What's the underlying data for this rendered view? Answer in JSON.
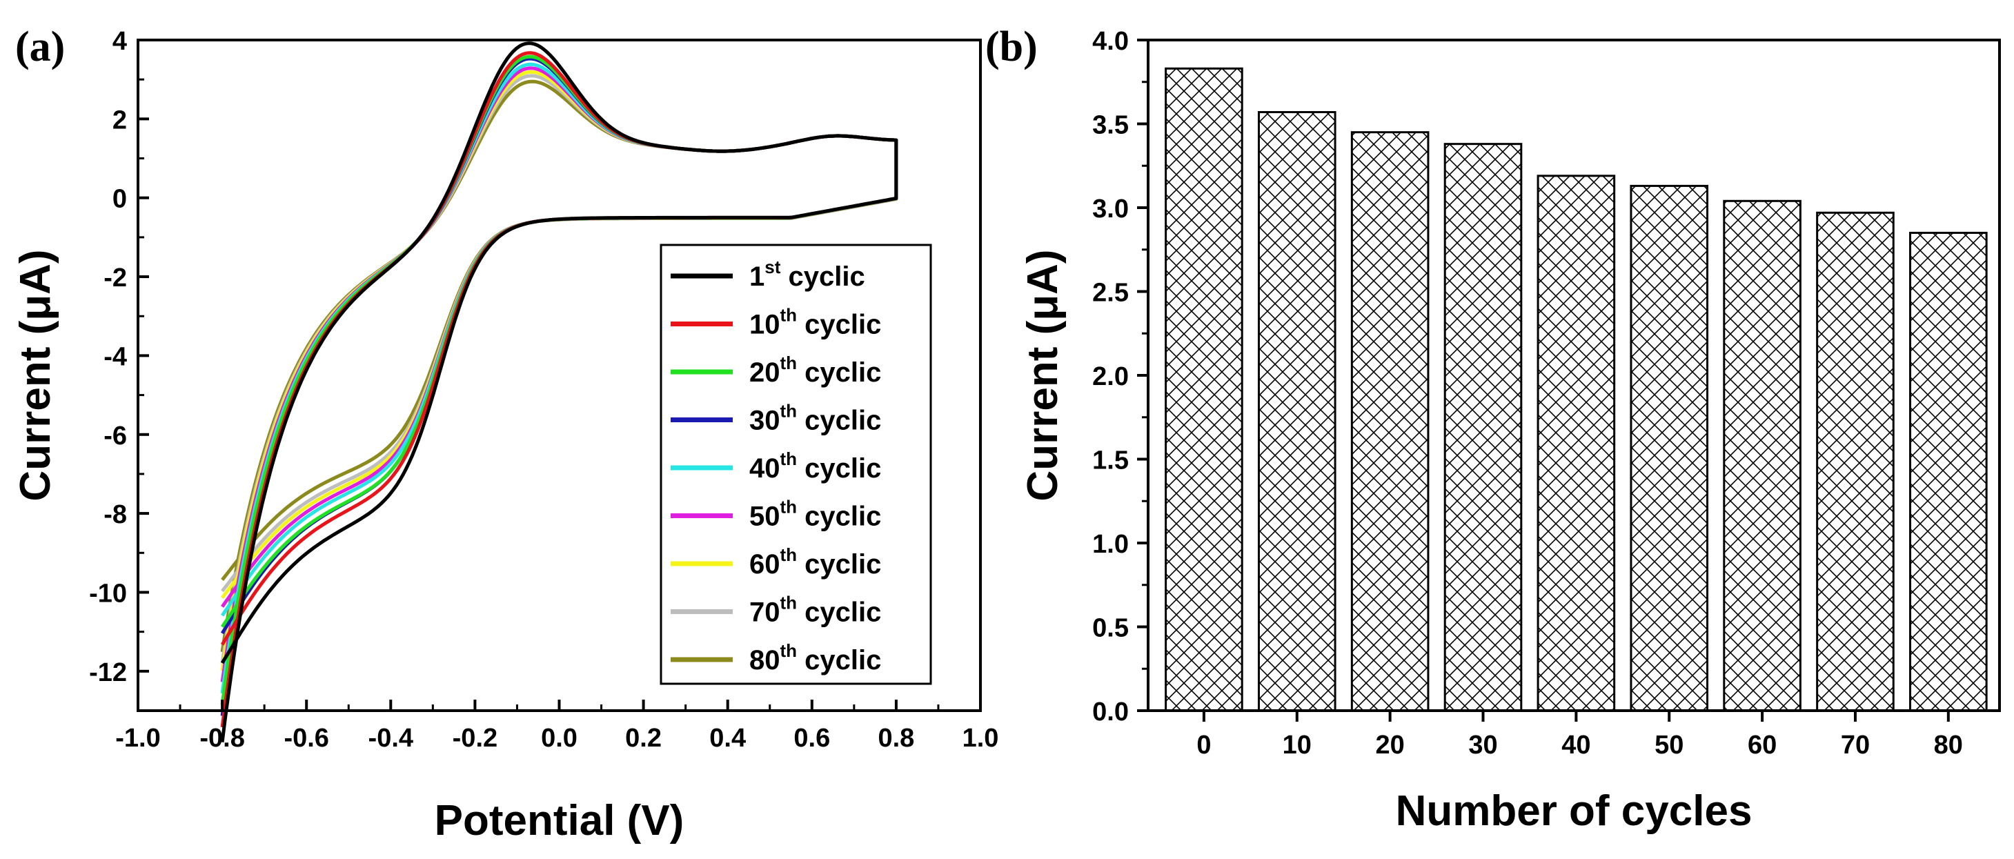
{
  "chart_data": [
    {
      "type": "line",
      "panel_label": "(a)",
      "xlabel": "Potential (V)",
      "ylabel": "Current (μA)",
      "xlim": [
        -1.0,
        1.0
      ],
      "ylim": [
        -13,
        4
      ],
      "x_ticks": [
        -1.0,
        -0.8,
        -0.6,
        -0.4,
        -0.2,
        0.0,
        0.2,
        0.4,
        0.6,
        0.8,
        1.0
      ],
      "x_tick_labels": [
        "-1.0",
        "-0.8",
        "-0.6",
        "-0.4",
        "-0.2",
        "0.0",
        "0.2",
        "0.4",
        "0.6",
        "0.8",
        "1.0"
      ],
      "y_ticks": [
        -12,
        -10,
        -8,
        -6,
        -4,
        -2,
        0,
        2,
        4
      ],
      "y_tick_labels": [
        "-12",
        "-10",
        "-8",
        "-6",
        "-4",
        "-2",
        "0",
        "2",
        "4"
      ],
      "grid": false,
      "legend_position": "lower-right",
      "series": [
        {
          "name_main": "1",
          "name_sup": "st",
          "name_tail": " cyclic",
          "color": "#000000",
          "peak_ox": 3.85,
          "peak_red": -7.8,
          "min_current": -12.9
        },
        {
          "name_main": "10",
          "name_sup": "th",
          "name_tail": " cyclic",
          "color": "#e8141a",
          "peak_ox": 3.6,
          "peak_red": -7.4,
          "min_current": -12.5
        },
        {
          "name_main": "20",
          "name_sup": "th",
          "name_tail": " cyclic",
          "color": "#22e022",
          "peak_ox": 3.5,
          "peak_red": -7.2,
          "min_current": -11.9
        },
        {
          "name_main": "30",
          "name_sup": "th",
          "name_tail": " cyclic",
          "color": "#1a1ab0",
          "peak_ox": 3.45,
          "peak_red": -7.2,
          "min_current": -12.2
        },
        {
          "name_main": "40",
          "name_sup": "th",
          "name_tail": " cyclic",
          "color": "#27e5e5",
          "peak_ox": 3.3,
          "peak_red": -7.0,
          "min_current": -11.6
        },
        {
          "name_main": "50",
          "name_sup": "th",
          "name_tail": " cyclic",
          "color": "#e01ee0",
          "peak_ox": 3.2,
          "peak_red": -6.9,
          "min_current": -11.3
        },
        {
          "name_main": "60",
          "name_sup": "th",
          "name_tail": " cyclic",
          "color": "#f4f41a",
          "peak_ox": 3.1,
          "peak_red": -6.8,
          "min_current": -11.0
        },
        {
          "name_main": "70",
          "name_sup": "th",
          "name_tail": " cyclic",
          "color": "#bdbdbd",
          "peak_ox": 3.0,
          "peak_red": -6.7,
          "min_current": -10.8
        },
        {
          "name_main": "80",
          "name_sup": "th",
          "name_tail": " cyclic",
          "color": "#8c8a1c",
          "peak_ox": 2.85,
          "peak_red": -6.5,
          "min_current": -10.5
        }
      ]
    },
    {
      "type": "bar",
      "panel_label": "(b)",
      "xlabel": "Number of cycles",
      "ylabel": "Current (μA)",
      "categories": [
        "0",
        "10",
        "20",
        "30",
        "40",
        "50",
        "60",
        "70",
        "80"
      ],
      "values": [
        3.83,
        3.57,
        3.45,
        3.38,
        3.19,
        3.13,
        3.04,
        2.97,
        2.85
      ],
      "ylim": [
        0,
        4.0
      ],
      "y_ticks": [
        0,
        0.5,
        1.0,
        1.5,
        2.0,
        2.5,
        3.0,
        3.5,
        4.0
      ],
      "y_tick_labels": [
        "0.0",
        "0.5",
        "1.0",
        "1.5",
        "2.0",
        "2.5",
        "3.0",
        "3.5",
        "4.0"
      ],
      "grid": false,
      "bar_fill": "crosshatch"
    }
  ]
}
